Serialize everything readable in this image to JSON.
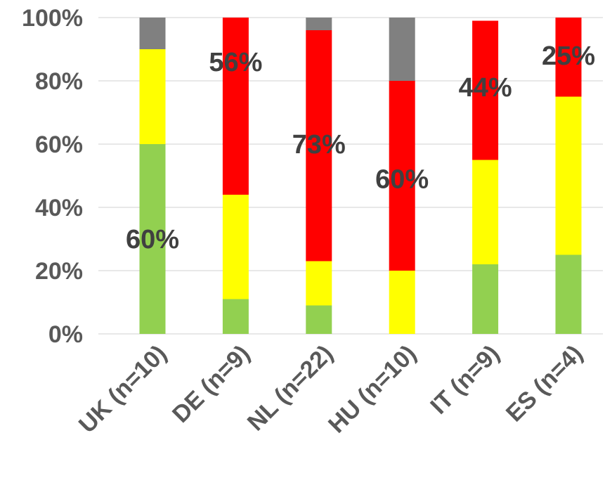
{
  "chart_data": {
    "type": "bar",
    "stacked": true,
    "percent_stacked": true,
    "title": "",
    "xlabel": "",
    "ylabel": "",
    "ylim": [
      0,
      100
    ],
    "y_ticks": [
      0,
      20,
      40,
      60,
      80,
      100
    ],
    "y_tick_labels": [
      "0%",
      "20%",
      "40%",
      "60%",
      "80%",
      "100%"
    ],
    "grid": true,
    "legend": "none",
    "categories": [
      "UK (n=10)",
      "DE (n=9)",
      "NL (n=22)",
      "HU (n=10)",
      "IT (n=9)",
      "ES (n=4)"
    ],
    "series": [
      {
        "color": "#92d050",
        "values": [
          60,
          11,
          9,
          0,
          22,
          25
        ]
      },
      {
        "color": "#ffff00",
        "values": [
          30,
          33,
          14,
          20,
          33,
          50
        ]
      },
      {
        "color": "#ff0000",
        "values": [
          0,
          56,
          73,
          60,
          44,
          25
        ]
      },
      {
        "color": "#808080",
        "values": [
          10,
          0,
          4,
          20,
          0,
          0
        ]
      }
    ],
    "data_labels": [
      "60%",
      "56%",
      "73%",
      "60%",
      "44%",
      "25%"
    ],
    "data_label_values": [
      30,
      86,
      60,
      49,
      78,
      88
    ]
  }
}
